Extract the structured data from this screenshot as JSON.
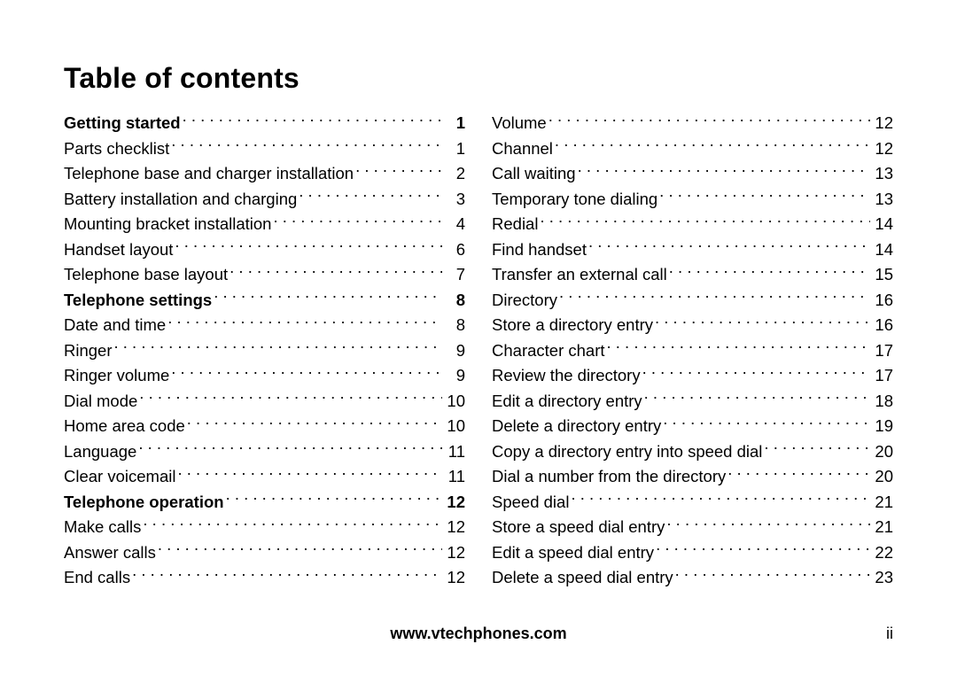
{
  "title": "Table of contents",
  "footer": {
    "url": "www.vtechphones.com",
    "page": "ii"
  },
  "columns": {
    "left": [
      {
        "label": "Getting started",
        "page": "1",
        "bold": true
      },
      {
        "label": "Parts checklist",
        "page": "1"
      },
      {
        "label": "Telephone base and charger installation",
        "page": "2"
      },
      {
        "label": "Battery installation and charging",
        "page": "3"
      },
      {
        "label": "Mounting bracket installation",
        "page": "4"
      },
      {
        "label": "Handset layout",
        "page": "6"
      },
      {
        "label": "Telephone base layout",
        "page": "7"
      },
      {
        "label": "Telephone settings",
        "page": "8",
        "bold": true
      },
      {
        "label": "Date and time",
        "page": "8"
      },
      {
        "label": "Ringer",
        "page": "9"
      },
      {
        "label": "Ringer volume",
        "page": "9"
      },
      {
        "label": "Dial mode",
        "page": "10"
      },
      {
        "label": "Home area code",
        "page": "10"
      },
      {
        "label": "Language",
        "page": "11"
      },
      {
        "label": "Clear voicemail",
        "page": "11"
      },
      {
        "label": "Telephone operation",
        "page": "12",
        "bold": true
      },
      {
        "label": "Make calls",
        "page": "12"
      },
      {
        "label": "Answer calls",
        "page": "12"
      },
      {
        "label": "End calls",
        "page": "12"
      }
    ],
    "right": [
      {
        "label": "Volume",
        "page": "12"
      },
      {
        "label": "Channel",
        "page": "12"
      },
      {
        "label": "Call waiting",
        "page": "13"
      },
      {
        "label": "Temporary tone dialing",
        "page": "13"
      },
      {
        "label": "Redial",
        "page": "14"
      },
      {
        "label": "Find handset",
        "page": "14"
      },
      {
        "label": "Transfer an external call",
        "page": "15"
      },
      {
        "label": "Directory",
        "page": "16"
      },
      {
        "label": "Store a directory entry",
        "page": "16"
      },
      {
        "label": "Character chart",
        "page": "17"
      },
      {
        "label": "Review the directory",
        "page": "17"
      },
      {
        "label": "Edit a directory entry",
        "page": "18"
      },
      {
        "label": "Delete a directory entry",
        "page": "19"
      },
      {
        "label": "Copy a directory entry into speed dial",
        "page": "20"
      },
      {
        "label": "Dial a number from the directory",
        "page": "20"
      },
      {
        "label": "Speed dial",
        "page": "21"
      },
      {
        "label": "Store a speed dial entry",
        "page": "21"
      },
      {
        "label": "Edit a speed dial entry",
        "page": "22"
      },
      {
        "label": "Delete a speed dial entry",
        "page": "23"
      }
    ]
  }
}
